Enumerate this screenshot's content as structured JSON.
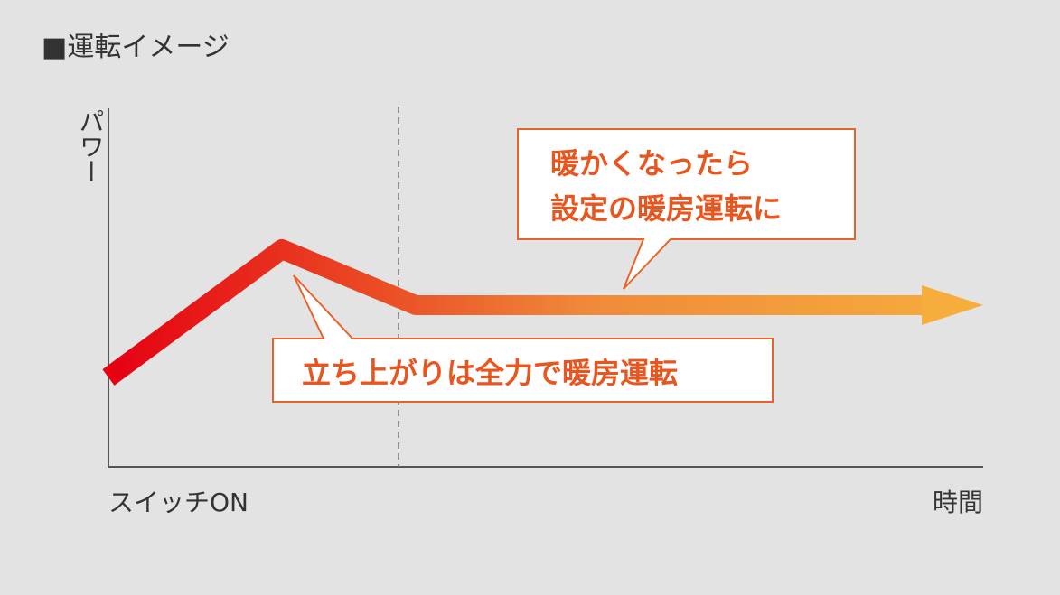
{
  "title": "■運転イメージ",
  "y_axis_label": "パワー",
  "x_axis_labels": {
    "start": "スイッチON",
    "end": "時間"
  },
  "callouts": [
    {
      "lines": [
        "暖かくなったら",
        "設定の暖房運転に"
      ]
    },
    {
      "lines": [
        "立ち上がりは全力で暖房運転"
      ]
    }
  ]
}
